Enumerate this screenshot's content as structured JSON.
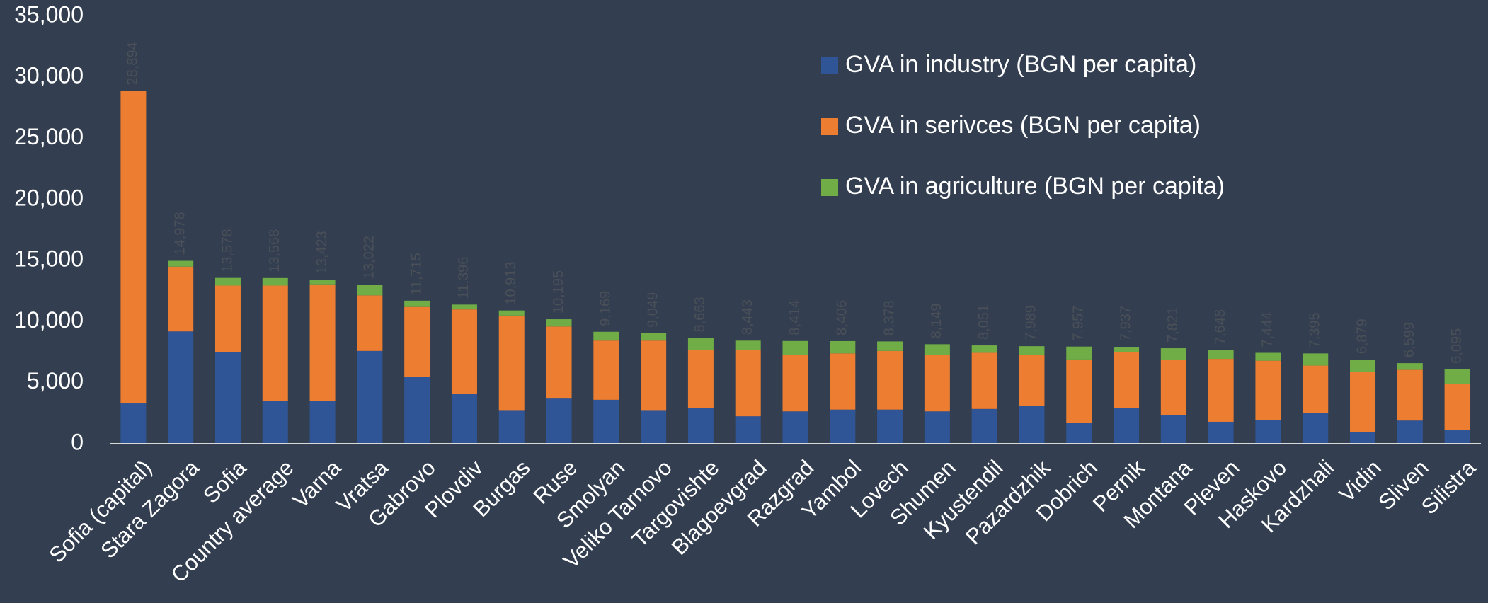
{
  "chart_data": {
    "type": "stacked_bar",
    "categories": [
      "Sofia (capital)",
      "Stara Zagora",
      "Sofia",
      "Country average",
      "Varna",
      "Vratsa",
      "Gabrovo",
      "Plovdiv",
      "Burgas",
      "Ruse",
      "Smolyan",
      "Veliko Tarnovo",
      "Targovishte",
      "Blagoevgrad",
      "Razgrad",
      "Yambol",
      "Lovech",
      "Shumen",
      "Kyustendil",
      "Pazardzhik",
      "Dobrich",
      "Pernik",
      "Montana",
      "Pleven",
      "Haskovo",
      "Kardzhali",
      "Vidin",
      "Sliven",
      "Silistra"
    ],
    "series": [
      {
        "name": "GVA in industry (BGN per capita)",
        "color": "#2f5597",
        "values": [
          3300,
          9200,
          7500,
          3500,
          3500,
          7600,
          5500,
          4100,
          2700,
          3700,
          3600,
          2700,
          2900,
          2250,
          2650,
          2800,
          2800,
          2650,
          2850,
          3100,
          1700,
          2900,
          2350,
          1800,
          1950,
          2500,
          950,
          1900,
          1100
        ]
      },
      {
        "name": "GVA in serivces (BGN per capita)",
        "color": "#ed7d31",
        "values": [
          25564,
          5300,
          5450,
          9450,
          9550,
          4550,
          5700,
          6900,
          7800,
          5900,
          4850,
          5750,
          4800,
          5450,
          4650,
          4600,
          4800,
          4650,
          4600,
          4200,
          5200,
          4600,
          4500,
          5150,
          4850,
          3900,
          4950,
          4150,
          3800
        ]
      },
      {
        "name": "GVA in agriculture (BGN per capita)",
        "color": "#70ad47",
        "values": [
          30,
          478,
          628,
          618,
          373,
          872,
          515,
          396,
          413,
          595,
          719,
          599,
          963,
          743,
          1114,
          1006,
          778,
          849,
          601,
          689,
          1057,
          437,
          971,
          698,
          644,
          995,
          979,
          549,
          1195
        ]
      }
    ],
    "total_labels": [
      "28,894",
      "14,978",
      "13,578",
      "13,568",
      "13,423",
      "13,022",
      "11,715",
      "11,396",
      "10,913",
      "10,195",
      "9,169",
      "9,049",
      "8,663",
      "8,443",
      "8,414",
      "8,406",
      "8,378",
      "8,149",
      "8,051",
      "7,989",
      "7,957",
      "7,937",
      "7,821",
      "7,648",
      "7,444",
      "7,395",
      "6,879",
      "6,599",
      "6,095"
    ],
    "ylim": [
      0,
      35000
    ],
    "yticks": [
      0,
      {
        "value": 5000,
        "label": "5,000"
      },
      {
        "value": 10000,
        "label": "10,000"
      },
      {
        "value": 15000,
        "label": "15,000"
      },
      {
        "value": 20000,
        "label": "20,000"
      },
      {
        "value": 25000,
        "label": "25,000"
      },
      {
        "value": 30000,
        "label": "30,000"
      },
      {
        "value": 35000,
        "label": "35,000"
      }
    ],
    "grid": false,
    "legend": "upper right"
  }
}
